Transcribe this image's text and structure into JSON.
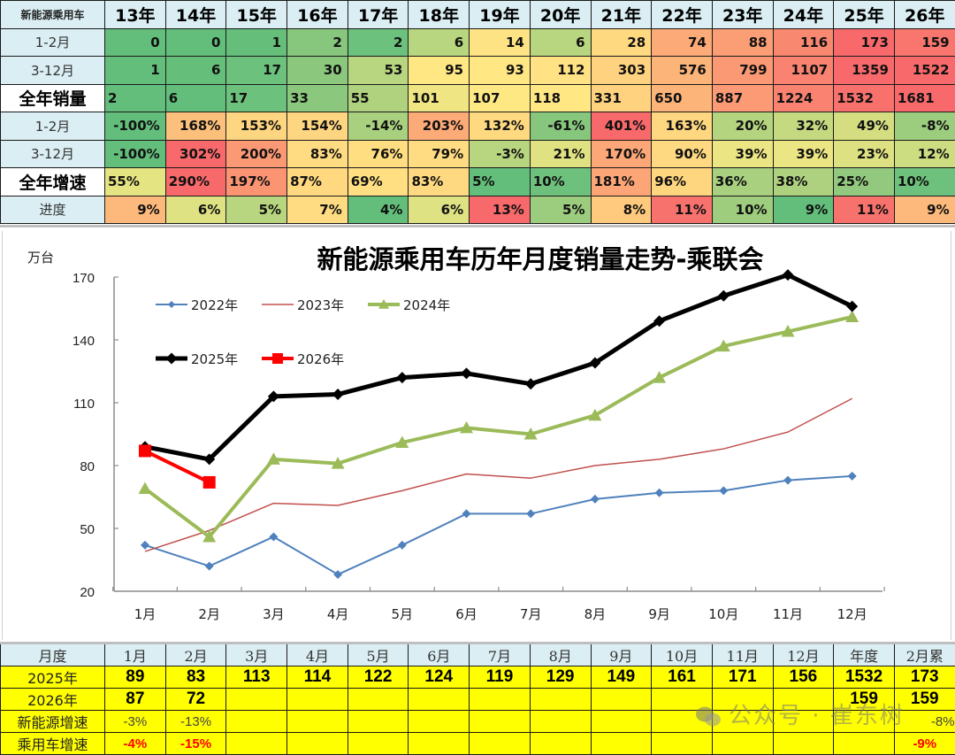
{
  "top_table": {
    "corner_label": "新能源乘用车",
    "years": [
      "13年",
      "14年",
      "15年",
      "16年",
      "17年",
      "18年",
      "19年",
      "20年",
      "21年",
      "22年",
      "23年",
      "24年",
      "25年",
      "26年"
    ],
    "rows": [
      {
        "label": "1-2月",
        "bold": false,
        "align": "right",
        "values": [
          "0",
          "0",
          "1",
          "2",
          "2",
          "6",
          "14",
          "6",
          "28",
          "74",
          "88",
          "116",
          "173",
          "159"
        ],
        "colors": [
          "#63be7b",
          "#63be7b",
          "#65bf7b",
          "#86c77d",
          "#6cc17c",
          "#b8d57f",
          "#fde383",
          "#b8d57f",
          "#fed980",
          "#fcaa77",
          "#fb9e75",
          "#f98870",
          "#f8696b",
          "#f8766d"
        ]
      },
      {
        "label": "3-12月",
        "bold": false,
        "align": "right",
        "values": [
          "1",
          "6",
          "17",
          "30",
          "53",
          "95",
          "93",
          "112",
          "303",
          "576",
          "799",
          "1107",
          "1359",
          "1522"
        ],
        "colors": [
          "#63be7b",
          "#65bf7b",
          "#6cc17c",
          "#8bc87e",
          "#b8d57f",
          "#ffe884",
          "#ffe884",
          "#ffe283",
          "#fed27f",
          "#fcb479",
          "#fb9975",
          "#f98370",
          "#f8696b",
          "#f8696b"
        ]
      },
      {
        "label": "全年销量",
        "bold": true,
        "align": "left",
        "values": [
          "2",
          "6",
          "17",
          "33",
          "55",
          "101",
          "107",
          "118",
          "331",
          "650",
          "887",
          "1224",
          "1532",
          "1681"
        ],
        "colors": [
          "#63be7b",
          "#63be7b",
          "#6cc17c",
          "#8bc87e",
          "#b0d27f",
          "#f0e583",
          "#fde884",
          "#ffe884",
          "#fed27f",
          "#fcb479",
          "#fb9a75",
          "#f98370",
          "#f8716d",
          "#f8696b"
        ]
      },
      {
        "label": "1-2月",
        "bold": false,
        "align": "right",
        "values": [
          "-100%",
          "168%",
          "153%",
          "154%",
          "-14%",
          "203%",
          "132%",
          "-61%",
          "401%",
          "163%",
          "20%",
          "32%",
          "49%",
          "-8%"
        ],
        "colors": [
          "#63be7b",
          "#fdc07c",
          "#fed580",
          "#fed580",
          "#a8d07f",
          "#fcaa77",
          "#fed980",
          "#87c77d",
          "#f8696b",
          "#fed780",
          "#b4d47f",
          "#c5d980",
          "#d4de81",
          "#9ccc7e"
        ]
      },
      {
        "label": "3-12月",
        "bold": false,
        "align": "right",
        "values": [
          "-100%",
          "302%",
          "200%",
          "83%",
          "76%",
          "79%",
          "-3%",
          "21%",
          "170%",
          "90%",
          "39%",
          "39%",
          "23%",
          "12%"
        ],
        "colors": [
          "#63be7b",
          "#f8696b",
          "#fb9975",
          "#ffdb81",
          "#ffdd81",
          "#ffdc81",
          "#b8d57f",
          "#e0e282",
          "#fca777",
          "#ffd981",
          "#ebe583",
          "#ebe583",
          "#dde182",
          "#ccdc81"
        ]
      },
      {
        "label": "全年增速",
        "bold": true,
        "align": "left",
        "values": [
          "55%",
          "290%",
          "197%",
          "87%",
          "69%",
          "83%",
          "5%",
          "10%",
          "181%",
          "96%",
          "36%",
          "38%",
          "25%",
          "10%"
        ],
        "colors": [
          "#e5e483",
          "#f8696b",
          "#fa9473",
          "#ffd880",
          "#ffdf82",
          "#ffd981",
          "#63be7b",
          "#6ec17c",
          "#fca577",
          "#ffd680",
          "#a8d07f",
          "#aed17f",
          "#92c97e",
          "#6ec17c"
        ]
      },
      {
        "label": "进度",
        "bold": false,
        "align": "right",
        "values": [
          "9%",
          "6%",
          "5%",
          "7%",
          "4%",
          "6%",
          "13%",
          "5%",
          "8%",
          "11%",
          "10%",
          "9%",
          "11%",
          "9%"
        ],
        "colors": [
          "#fdb87b",
          "#dfe283",
          "#b8d57f",
          "#ffdc81",
          "#63be7b",
          "#dfe283",
          "#f8696b",
          "#9ccc7e",
          "#ffca7e",
          "#f8726d",
          "#9ecd7e",
          "#63be7b",
          "#f8726d",
          "#fdb87b"
        ]
      }
    ]
  },
  "chart_data": {
    "type": "line",
    "title": "新能源乘用车历年月度销量走势-乘联会",
    "xlabel": "",
    "ylabel": "万台",
    "ylim": [
      20,
      170
    ],
    "yticks": [
      20,
      50,
      80,
      110,
      140,
      170
    ],
    "grid": false,
    "legend_position": "upper-left inside",
    "categories": [
      "1月",
      "2月",
      "3月",
      "4月",
      "5月",
      "6月",
      "7月",
      "8月",
      "9月",
      "10月",
      "11月",
      "12月"
    ],
    "series": [
      {
        "name": "2022年",
        "color": "#4f81bd",
        "marker": "diamond",
        "width": 2,
        "values": [
          42,
          32,
          46,
          28,
          42,
          57,
          57,
          64,
          67,
          68,
          73,
          75
        ]
      },
      {
        "name": "2023年",
        "color": "#c0504d",
        "marker": "none",
        "width": 1.5,
        "values": [
          39,
          49,
          62,
          61,
          68,
          76,
          74,
          80,
          83,
          88,
          96,
          112
        ]
      },
      {
        "name": "2024年",
        "color": "#9bbb59",
        "marker": "triangle",
        "width": 4,
        "values": [
          69,
          46,
          83,
          81,
          91,
          98,
          95,
          104,
          122,
          137,
          144,
          151
        ]
      },
      {
        "name": "2025年",
        "color": "#000000",
        "marker": "diamond",
        "width": 5,
        "values": [
          89,
          83,
          113,
          114,
          122,
          124,
          119,
          129,
          149,
          161,
          171,
          156
        ]
      },
      {
        "name": "2026年",
        "color": "#ff0000",
        "marker": "square",
        "width": 4,
        "values": [
          87,
          72
        ]
      }
    ]
  },
  "bottom_table": {
    "header": [
      "月度",
      "1月",
      "2月",
      "3月",
      "4月",
      "5月",
      "6月",
      "7月",
      "8月",
      "9月",
      "10月",
      "11月",
      "12月",
      "年度",
      "2月累"
    ],
    "rows": [
      {
        "label": "2025年",
        "style": "val",
        "values": [
          "89",
          "83",
          "113",
          "114",
          "122",
          "124",
          "119",
          "129",
          "149",
          "161",
          "171",
          "156",
          "1532",
          "173"
        ]
      },
      {
        "label": "2026年",
        "style": "val",
        "values": [
          "87",
          "72",
          "",
          "",
          "",
          "",
          "",
          "",
          "",
          "",
          "",
          "",
          "159",
          "159"
        ]
      },
      {
        "label": "新能源增速",
        "style": "pct",
        "values": [
          "-3%",
          "-13%",
          "",
          "",
          "",
          "",
          "",
          "",
          "",
          "",
          "",
          "",
          "",
          "-8%"
        ]
      },
      {
        "label": "乘用车增速",
        "style": "pctred",
        "values": [
          "-4%",
          "-15%",
          "",
          "",
          "",
          "",
          "",
          "",
          "",
          "",
          "",
          "",
          "",
          "-9%"
        ]
      }
    ]
  },
  "watermark": {
    "text": "公众号 · 崔东树",
    "icon": "wechat-icon"
  }
}
